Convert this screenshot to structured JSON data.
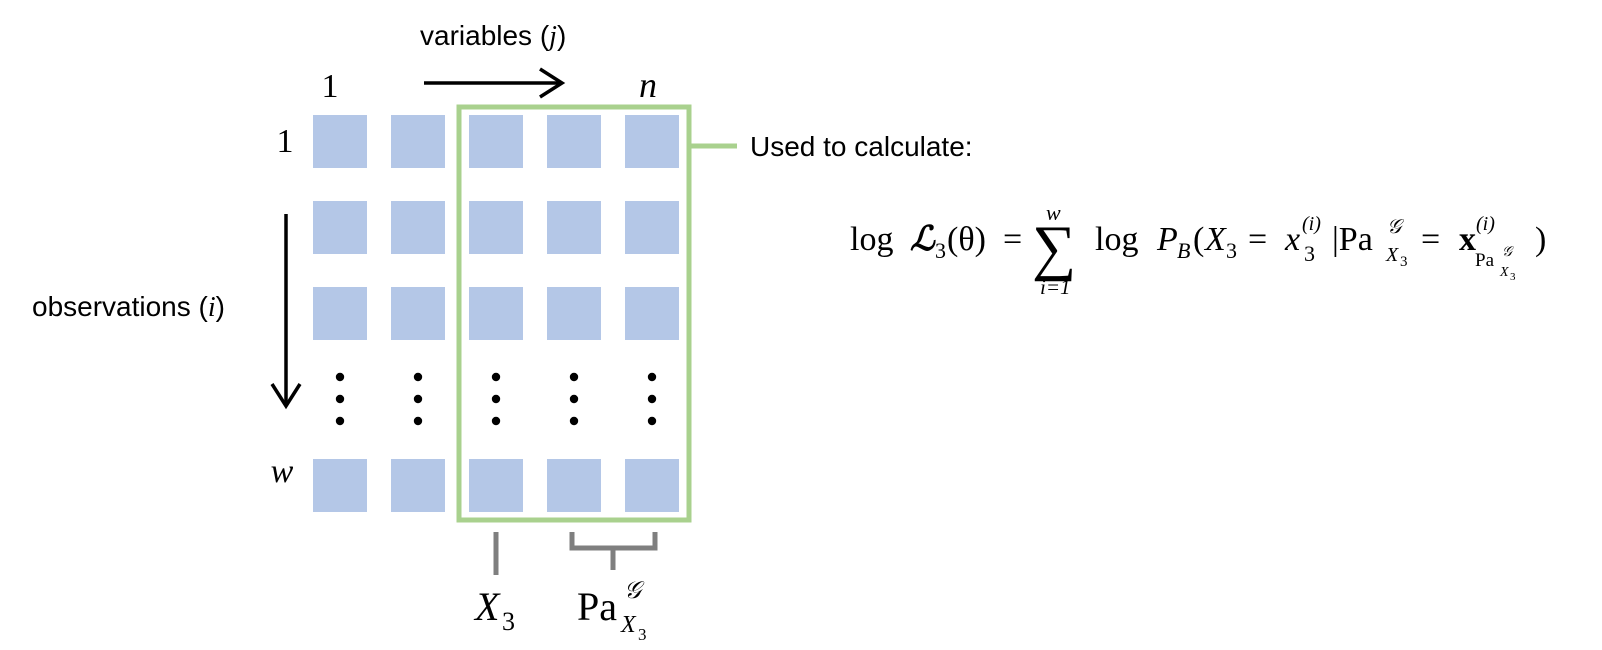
{
  "header": {
    "variables_label": "variables (",
    "variables_var": "j",
    "variables_close": ")",
    "col_first": "1",
    "col_last": "n"
  },
  "rows": {
    "row_first": "1",
    "row_last": "w",
    "observations_label": "observations (",
    "observations_var": "i",
    "observations_close": ")"
  },
  "callout": {
    "used_label": "Used to calculate:"
  },
  "formula": {
    "log_fn": "log",
    "L_sym": "ℒ",
    "L_sub": "3",
    "theta_arg": "(θ)",
    "eq": "=",
    "sum": "∑",
    "sum_top": "w",
    "sum_bottom": "i=1",
    "log_fn2": "log",
    "P": "P",
    "P_sub": "B",
    "paren_open": "(",
    "X": "X",
    "X_sub": "3",
    "eq2": "=",
    "x": "x",
    "x_sub": "3",
    "x_sup": "(i)",
    "bar_pa": "|Pa",
    "pa_sup": "𝒢",
    "pa_sub": "X",
    "pa_sub_sub": "3",
    "eq3": "=",
    "bold_x": "x",
    "bold_x_sup": "(i)",
    "bold_x_sub_pa": "Pa",
    "bold_x_sub_G": "𝒢",
    "bold_x_sub_X": "X",
    "bold_x_sub_3": "3",
    "paren_close": ")"
  },
  "bottom_labels": {
    "x3": "X",
    "x3_sub": "3",
    "pa": "Pa",
    "pa_sup": "𝒢",
    "pa_sub": "X",
    "pa_sub_sub": "3"
  },
  "colors": {
    "cell": "#b4c7e7",
    "highlight": "#a9d18e",
    "bracket": "#7f7f7f",
    "text": "#000000"
  },
  "icons": [
    "right-arrow-icon",
    "down-arrow-icon",
    "vertical-ellipsis-icon"
  ]
}
